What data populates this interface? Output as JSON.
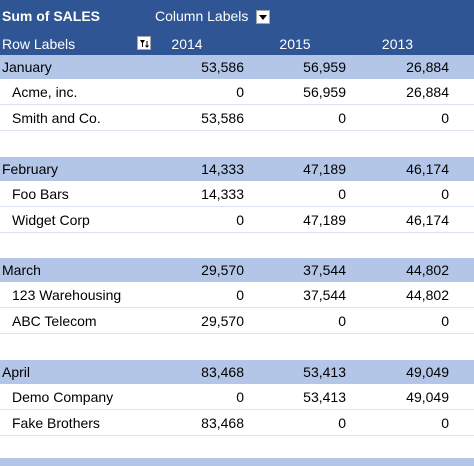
{
  "pivot": {
    "title": "Sum of SALES",
    "column_labels": "Column Labels",
    "row_labels": "Row Labels",
    "years": [
      "2014",
      "2015",
      "2013"
    ],
    "groups": [
      {
        "month": "January",
        "totals": [
          "53,586",
          "56,959",
          "26,884"
        ],
        "items": [
          {
            "name": "Acme, inc.",
            "values": [
              "0",
              "56,959",
              "26,884"
            ]
          },
          {
            "name": "Smith and Co.",
            "values": [
              "53,586",
              "0",
              "0"
            ]
          }
        ]
      },
      {
        "month": "February",
        "totals": [
          "14,333",
          "47,189",
          "46,174"
        ],
        "items": [
          {
            "name": "Foo Bars",
            "values": [
              "14,333",
              "0",
              "0"
            ]
          },
          {
            "name": "Widget Corp",
            "values": [
              "0",
              "47,189",
              "46,174"
            ]
          }
        ]
      },
      {
        "month": "March",
        "totals": [
          "29,570",
          "37,544",
          "44,802"
        ],
        "items": [
          {
            "name": "123 Warehousing",
            "values": [
              "0",
              "37,544",
              "44,802"
            ]
          },
          {
            "name": "ABC Telecom",
            "values": [
              "29,570",
              "0",
              "0"
            ]
          }
        ]
      },
      {
        "month": "April",
        "totals": [
          "83,468",
          "53,413",
          "49,049"
        ],
        "items": [
          {
            "name": "Demo Company",
            "values": [
              "0",
              "53,413",
              "49,049"
            ]
          },
          {
            "name": "Fake Brothers",
            "values": [
              "83,468",
              "0",
              "0"
            ]
          }
        ]
      }
    ]
  },
  "icons": {
    "column_filter": "dropdown-arrow-icon",
    "row_filter": "filter-sort-icon"
  },
  "colors": {
    "header": "#2f5595",
    "group_band": "#b4c6e7",
    "separator": "#d9e1f2"
  }
}
